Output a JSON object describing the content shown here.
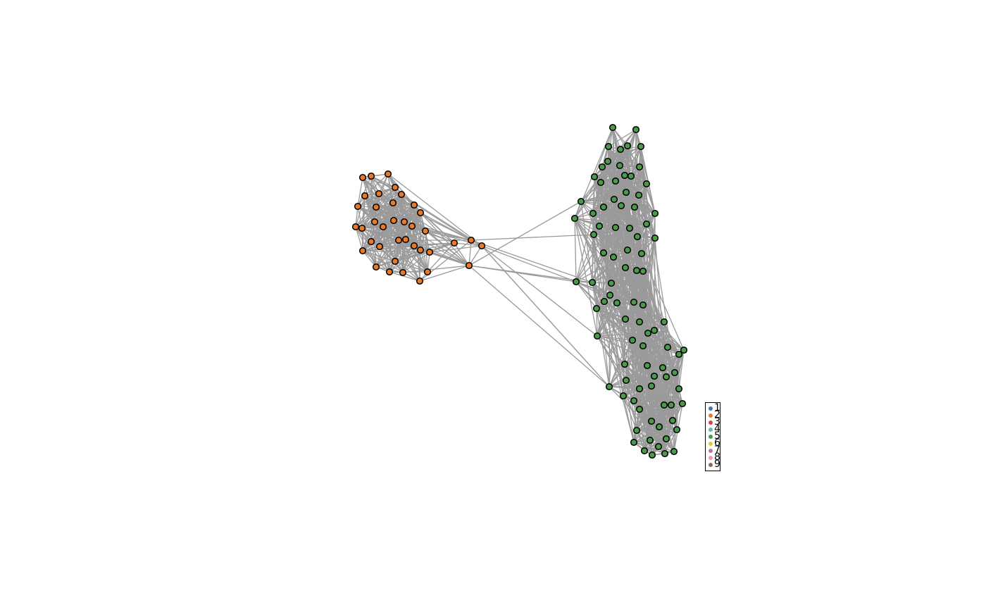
{
  "graph": {
    "edge_color": "#9a9a9a",
    "node_stroke": "#000000",
    "clusters": [
      {
        "id": "2",
        "color": "#e8792a"
      },
      {
        "id": "5",
        "color": "#4a9a4a"
      }
    ]
  },
  "legend": {
    "items": [
      {
        "label": "1",
        "color": "#3f78a8"
      },
      {
        "label": "2",
        "color": "#e8792a"
      },
      {
        "label": "3",
        "color": "#d9453d"
      },
      {
        "label": "4",
        "color": "#6fb3b0"
      },
      {
        "label": "5",
        "color": "#4a9a4a"
      },
      {
        "label": "6",
        "color": "#e7c63c"
      },
      {
        "label": "7",
        "color": "#b07aa1"
      },
      {
        "label": "8",
        "color": "#f29aaa"
      },
      {
        "label": "9",
        "color": "#8c6d5c"
      }
    ]
  }
}
